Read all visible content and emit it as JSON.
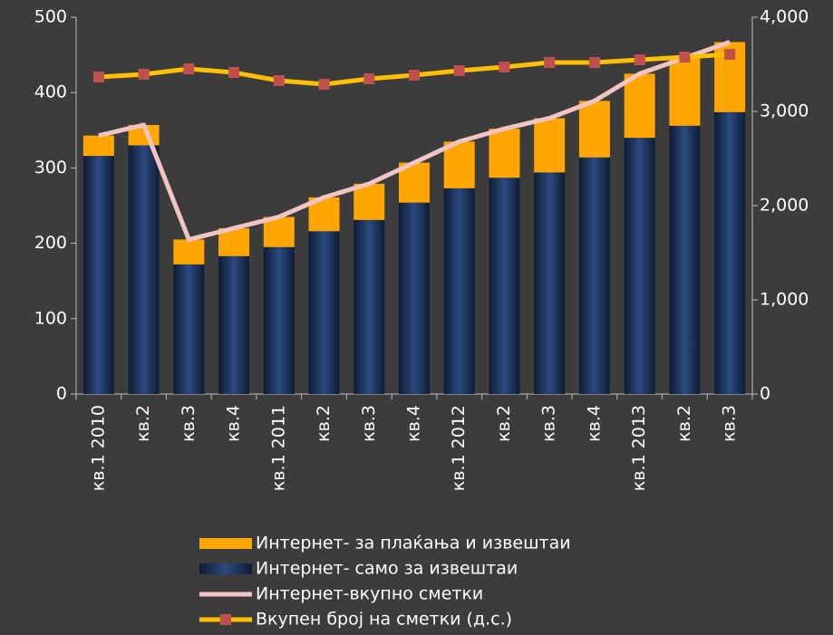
{
  "chart_data": {
    "type": "bar",
    "categories": [
      "кв.1 2010",
      "кв.2",
      "кв.3",
      "кв.4",
      "кв.1 2011",
      "кв.2",
      "кв.3",
      "кв.4",
      "кв.1 2012",
      "кв.2",
      "кв.3",
      "кв.4",
      "кв.1 2013",
      "кв.2",
      "кв.3"
    ],
    "series": [
      {
        "name": "Интернет- за плаќања и извештаи",
        "type": "bar",
        "color": "#ffa600",
        "values": [
          27,
          27,
          33,
          37,
          40,
          45,
          48,
          53,
          62,
          65,
          72,
          75,
          85,
          90,
          93
        ]
      },
      {
        "name": "Интернет- само за извештаи",
        "type": "bar",
        "color": "#1f3864",
        "values": [
          316,
          330,
          172,
          183,
          195,
          216,
          231,
          254,
          273,
          287,
          294,
          314,
          340,
          356,
          374
        ]
      },
      {
        "name": "Интернет-вкупно сметки",
        "type": "line",
        "color": "#f2c4c4",
        "values": [
          343,
          357,
          205,
          220,
          235,
          261,
          279,
          307,
          335,
          352,
          366,
          389,
          425,
          446,
          467
        ]
      },
      {
        "name": "Вкупен број на сметки (д.с.)",
        "type": "line",
        "axis": "y2",
        "color": "#ffc000",
        "marker_color": "#c0504d",
        "values": [
          3365,
          3394,
          3452,
          3413,
          3327,
          3288,
          3346,
          3385,
          3433,
          3471,
          3519,
          3519,
          3548,
          3577,
          3606
        ]
      }
    ],
    "ylim": [
      0,
      500
    ],
    "yticks": [
      0,
      100,
      200,
      300,
      400,
      500
    ],
    "y2lim": [
      0,
      4000
    ],
    "y2ticks": [
      0,
      {
        "value": 1000,
        "label": "1,000"
      },
      {
        "value": 2000,
        "label": "2,000"
      },
      {
        "value": 3000,
        "label": "3,000"
      },
      {
        "value": 4000,
        "label": "4,000"
      }
    ],
    "stacked": true
  }
}
